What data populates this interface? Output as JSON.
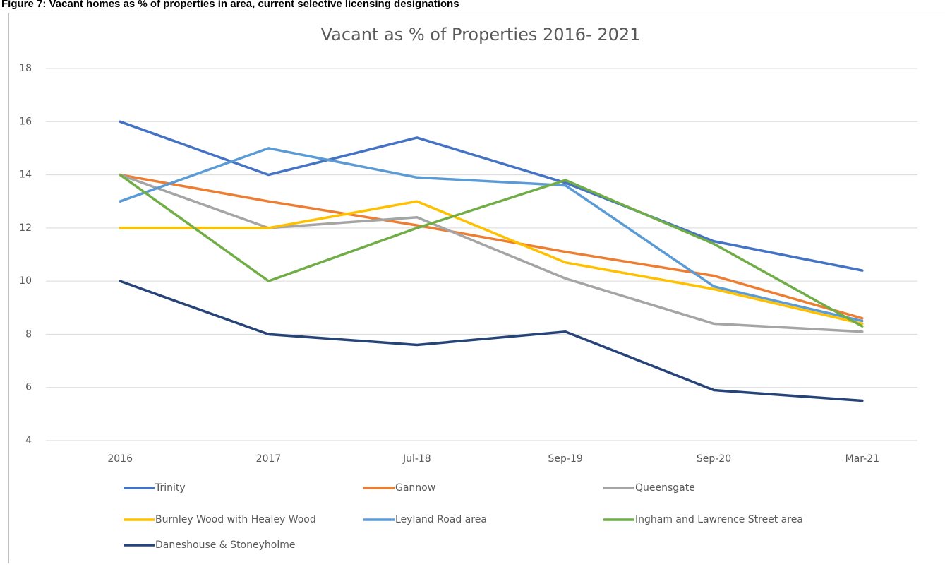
{
  "caption": "Figure 7: Vacant homes as % of properties in area, current selective licensing designations",
  "chart_data": {
    "type": "line",
    "title": "Vacant as % of Properties 2016- 2021",
    "categories": [
      "2016",
      "2017",
      "Jul-18",
      "Sep-19",
      "Sep-20",
      "Mar-21"
    ],
    "series": [
      {
        "name": "Trinity",
        "color": "#4472c4",
        "values": [
          16,
          14,
          15.4,
          13.7,
          11.5,
          10.4
        ]
      },
      {
        "name": "Gannow",
        "color": "#ed7d31",
        "values": [
          14,
          13,
          12.1,
          11.1,
          10.2,
          8.6
        ]
      },
      {
        "name": "Queensgate",
        "color": "#a5a5a5",
        "values": [
          14,
          12,
          12.4,
          10.1,
          8.4,
          8.1
        ]
      },
      {
        "name": "Burnley Wood with Healey Wood",
        "color": "#ffc000",
        "values": [
          12,
          12,
          13,
          10.7,
          9.7,
          8.4
        ]
      },
      {
        "name": "Leyland Road area",
        "color": "#5b9bd5",
        "values": [
          13,
          15,
          13.9,
          13.6,
          9.8,
          8.5
        ]
      },
      {
        "name": "Ingham and Lawrence Street area",
        "color": "#70ad47",
        "values": [
          14,
          10,
          12,
          13.8,
          11.4,
          8.3
        ]
      },
      {
        "name": "Daneshouse & Stoneyholme",
        "color": "#264478",
        "values": [
          10,
          8,
          7.6,
          8.1,
          5.9,
          5.5
        ]
      }
    ],
    "ylim": [
      4,
      18
    ],
    "yticks": [
      4,
      6,
      8,
      10,
      12,
      14,
      16,
      18
    ],
    "grid": true,
    "legend": "bottom"
  }
}
